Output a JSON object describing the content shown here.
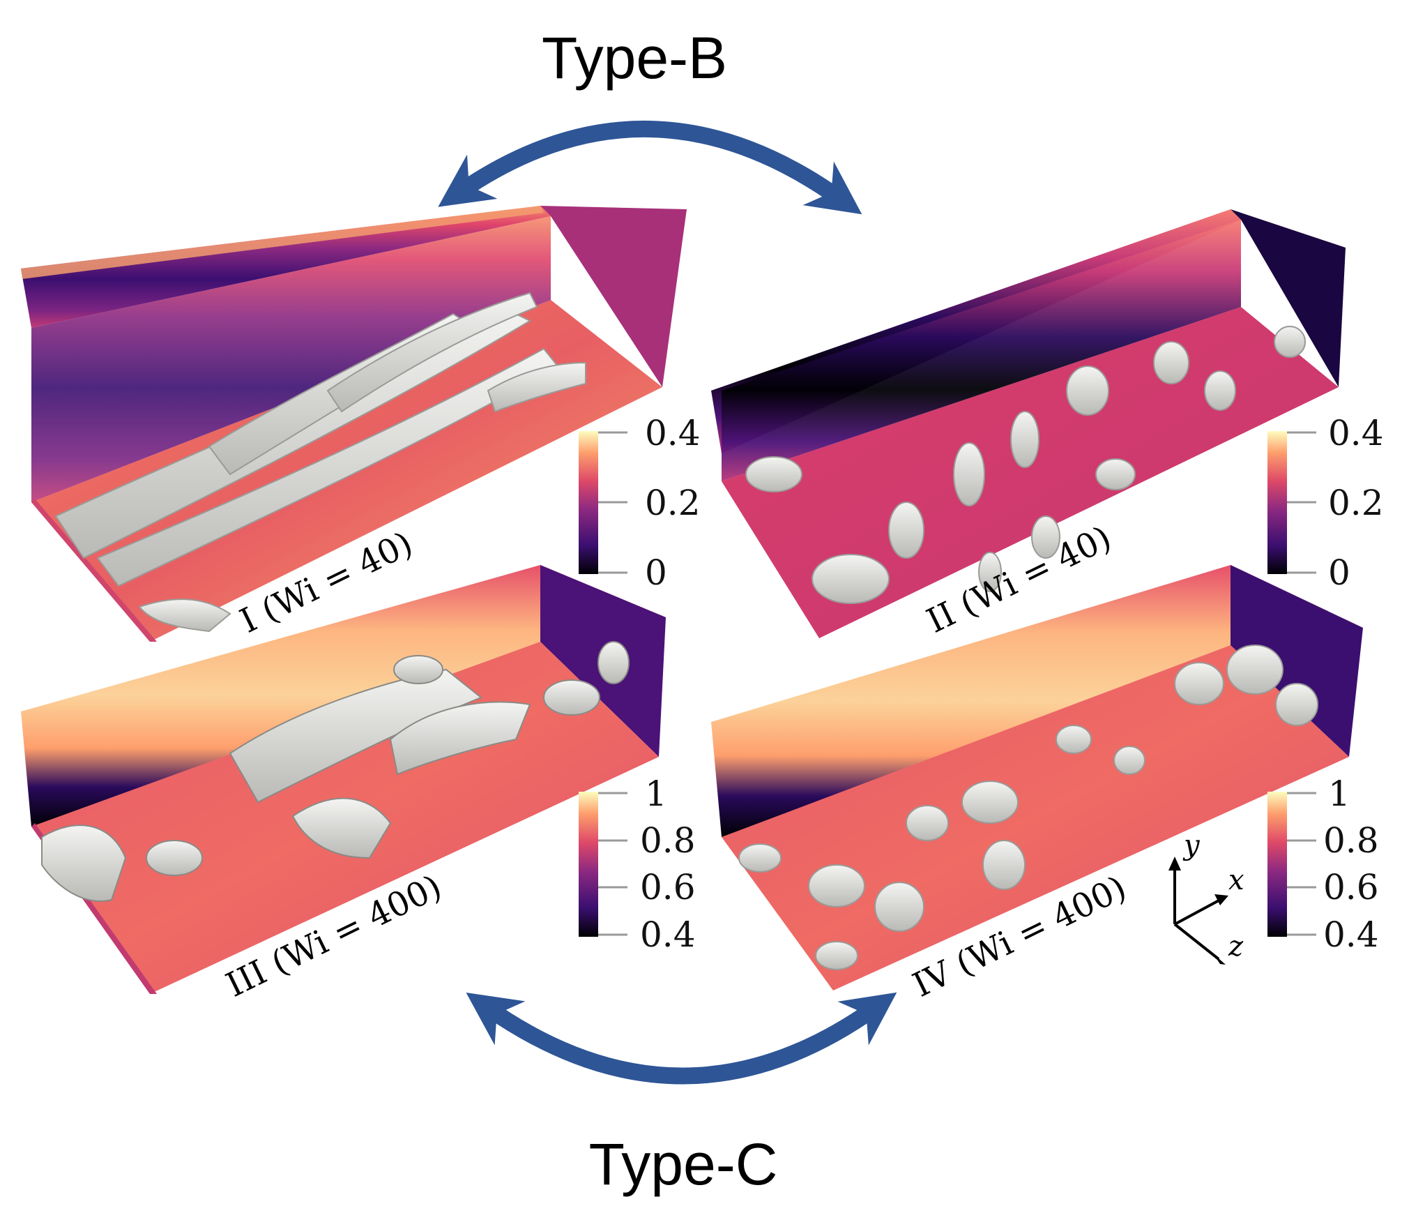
{
  "labels": {
    "type_b": "Type-B",
    "type_c": "Type-C"
  },
  "panels": [
    {
      "id": "I",
      "label": "I (Wi = 40)"
    },
    {
      "id": "II",
      "label": "II (Wi = 40)"
    },
    {
      "id": "III",
      "label": "III (Wi = 400)"
    },
    {
      "id": "IV",
      "label": "IV (Wi = 400)"
    }
  ],
  "colorbars": [
    {
      "panel": "I",
      "ticks": [
        "0.4",
        "0.2",
        "0"
      ]
    },
    {
      "panel": "II",
      "ticks": [
        "0.4",
        "0.2",
        "0"
      ]
    },
    {
      "panel": "III",
      "ticks": [
        "1",
        "0.8",
        "0.6",
        "0.4"
      ]
    },
    {
      "panel": "IV",
      "ticks": [
        "1",
        "0.8",
        "0.6",
        "0.4"
      ]
    }
  ],
  "axes": {
    "y": "y",
    "x": "x",
    "z": "z"
  },
  "colors": {
    "arrow": "#2e5596",
    "colormap": [
      "#000004",
      "#3b0f70",
      "#8c2981",
      "#de4968",
      "#fe9f6d",
      "#fcfdbf"
    ],
    "isosurface": "#e8e8e4"
  }
}
